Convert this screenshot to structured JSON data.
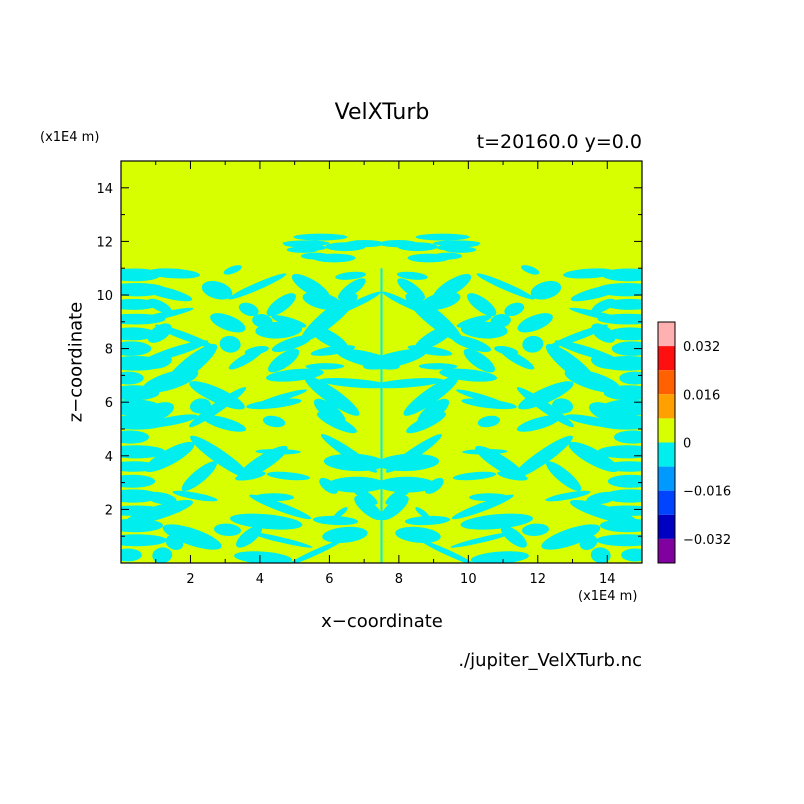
{
  "chart_data": {
    "type": "heatmap",
    "title": "VelXTurb",
    "subtitle": "t=20160.0 y=0.0",
    "xlabel": "x−coordinate",
    "ylabel": "z−coordinate",
    "x_unit": "(x1E4 m)",
    "y_unit": "(x1E4 m)",
    "xlim": [
      0,
      15
    ],
    "ylim": [
      0,
      15
    ],
    "x_ticks": [
      2,
      4,
      6,
      8,
      10,
      12,
      14
    ],
    "y_ticks": [
      2,
      4,
      6,
      8,
      10,
      12,
      14
    ],
    "grid": false,
    "legend": "right",
    "source_file": "./jupiter_VelXTurb.nc",
    "colorbar": {
      "ticks": [
        {
          "value": 0.032,
          "label": "0.032"
        },
        {
          "value": 0.016,
          "label": "0.016"
        },
        {
          "value": 0,
          "label": "0"
        },
        {
          "value": -0.016,
          "label": "−0.016"
        },
        {
          "value": -0.032,
          "label": "−0.032"
        }
      ],
      "range": [
        -0.04,
        0.04
      ],
      "levels": [
        {
          "min": 0.032,
          "max": 0.04,
          "color": "#ffb0b0"
        },
        {
          "min": 0.024,
          "max": 0.032,
          "color": "#ff1010"
        },
        {
          "min": 0.016,
          "max": 0.024,
          "color": "#ff6000"
        },
        {
          "min": 0.008,
          "max": 0.016,
          "color": "#ffa000"
        },
        {
          "min": 0.0,
          "max": 0.008,
          "color": "#d8ff00"
        },
        {
          "min": -0.008,
          "max": 0.0,
          "color": "#00eeee"
        },
        {
          "min": -0.016,
          "max": -0.008,
          "color": "#0099ff"
        },
        {
          "min": -0.024,
          "max": -0.016,
          "color": "#0044ff"
        },
        {
          "min": -0.032,
          "max": -0.024,
          "color": "#0000c0"
        },
        {
          "min": -0.04,
          "max": -0.032,
          "color": "#8000a0"
        }
      ]
    },
    "field": {
      "background_color": "#d8ff00",
      "pattern_color": "#00eeee",
      "mirror_axis_x": 7.5,
      "turbulent_region_ymax": 11
    }
  }
}
